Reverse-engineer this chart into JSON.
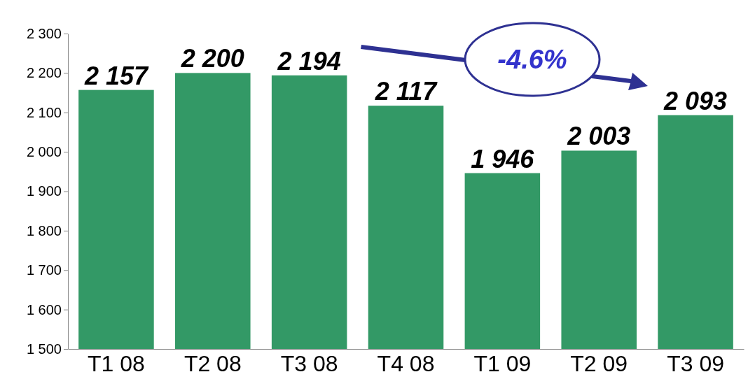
{
  "chart_data": {
    "type": "bar",
    "categories": [
      "T1 08",
      "T2 08",
      "T3 08",
      "T4 08",
      "T1 09",
      "T2 09",
      "T3 09"
    ],
    "values": [
      2157,
      2200,
      2194,
      2117,
      1946,
      2003,
      2093
    ],
    "value_labels": [
      "2 157",
      "2 200",
      "2 194",
      "2 117",
      "1 946",
      "2 003",
      "2 093"
    ],
    "color": "#339966",
    "ylim": [
      1500,
      2300
    ],
    "yticks": [
      {
        "value": 1500,
        "label": "1 500"
      },
      {
        "value": 1600,
        "label": "1 600"
      },
      {
        "value": 1700,
        "label": "1 700"
      },
      {
        "value": 1800,
        "label": "1 800"
      },
      {
        "value": 1900,
        "label": "1 900"
      },
      {
        "value": 2000,
        "label": "2 000"
      },
      {
        "value": 2100,
        "label": "2 100"
      },
      {
        "value": 2200,
        "label": "2 200"
      },
      {
        "value": 2300,
        "label": "2 300"
      }
    ],
    "annotations": [
      "-4.6%"
    ]
  }
}
